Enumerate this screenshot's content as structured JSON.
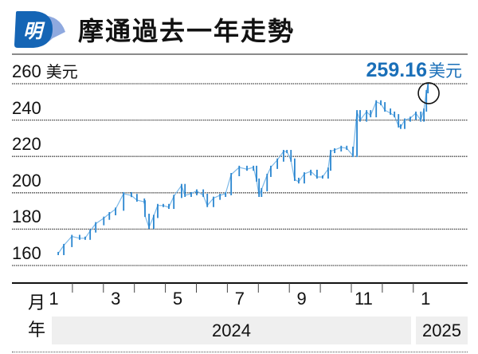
{
  "header": {
    "logo_text": "明",
    "title": "摩通過去一年走勢"
  },
  "last_price": {
    "value": "259.16",
    "unit": "美元"
  },
  "colors": {
    "accent": "#1a6fb8",
    "series": "#2a86d0",
    "series_light": "#7db9e8",
    "logo_blue": "#1565b5",
    "logo_tail": "#8fa9df"
  },
  "chart_data": {
    "type": "line",
    "title": "摩通過去一年走勢",
    "ylabel": "美元",
    "y_unit": "美元",
    "ylim": [
      160,
      260
    ],
    "yticks": [
      160,
      180,
      200,
      220,
      240,
      260
    ],
    "ytick_labels": [
      "160",
      "180",
      "200",
      "220",
      "240",
      "260"
    ],
    "xlim": [
      1,
      13.9
    ],
    "x_unit": "month (1 = Jan 2024, 13 = Jan 2025)",
    "x_tick_labels": [
      {
        "m": 1,
        "label": "1"
      },
      {
        "m": 3,
        "label": "3"
      },
      {
        "m": 5,
        "label": "5"
      },
      {
        "m": 7,
        "label": "7"
      },
      {
        "m": 9,
        "label": "9"
      },
      {
        "m": 11,
        "label": "11"
      },
      {
        "m": 13,
        "label": "1"
      }
    ],
    "month_row_label": "月",
    "year_row_label": "年",
    "years": [
      {
        "label": "2024",
        "from": 1,
        "to": 13
      },
      {
        "label": "2025",
        "from": 13,
        "to": 14
      }
    ],
    "grid": true,
    "highlight": {
      "label": "259.16美元",
      "value": 259.16,
      "marker": "circle"
    },
    "x": [
      1.54,
      1.72,
      1.98,
      2.23,
      2.41,
      2.57,
      2.75,
      3.01,
      3.19,
      3.39,
      3.65,
      3.9,
      4.08,
      4.32,
      4.34,
      4.47,
      4.62,
      4.75,
      4.93,
      5.11,
      5.27,
      5.52,
      5.63,
      5.83,
      6.01,
      6.22,
      6.35,
      6.55,
      6.76,
      6.94,
      7.12,
      7.38,
      7.63,
      7.84,
      7.94,
      8.02,
      8.1,
      8.28,
      8.4,
      8.61,
      8.81,
      8.92,
      9.05,
      9.17,
      9.3,
      9.48,
      9.69,
      9.89,
      10.07,
      10.25,
      10.33,
      10.46,
      10.67,
      10.85,
      11.05,
      11.18,
      11.28,
      11.49,
      11.62,
      11.8,
      11.95,
      12.08,
      12.26,
      12.39,
      12.52,
      12.59,
      12.72,
      12.9,
      13.08,
      13.24,
      13.34,
      13.42,
      13.47
    ],
    "y": [
      166.6,
      171,
      176,
      175,
      175,
      179,
      183,
      186,
      188.5,
      191,
      199.5,
      198.5,
      196,
      195,
      187.6,
      181,
      187,
      193,
      193,
      192,
      198,
      204,
      198.6,
      199.5,
      201,
      198.6,
      193,
      197,
      198.6,
      199.5,
      210,
      214,
      213,
      214,
      207,
      198.6,
      201.7,
      209.6,
      214,
      218,
      222.7,
      222.7,
      218,
      207.4,
      206,
      210.4,
      211.8,
      208.7,
      208.7,
      213,
      222.7,
      223.6,
      225,
      224.5,
      220.5,
      244.6,
      240,
      244.6,
      242.4,
      250,
      249,
      245.5,
      243.8,
      242.4,
      236.8,
      236,
      240,
      241,
      243.8,
      240,
      245.5,
      255.6,
      259.16
    ]
  }
}
